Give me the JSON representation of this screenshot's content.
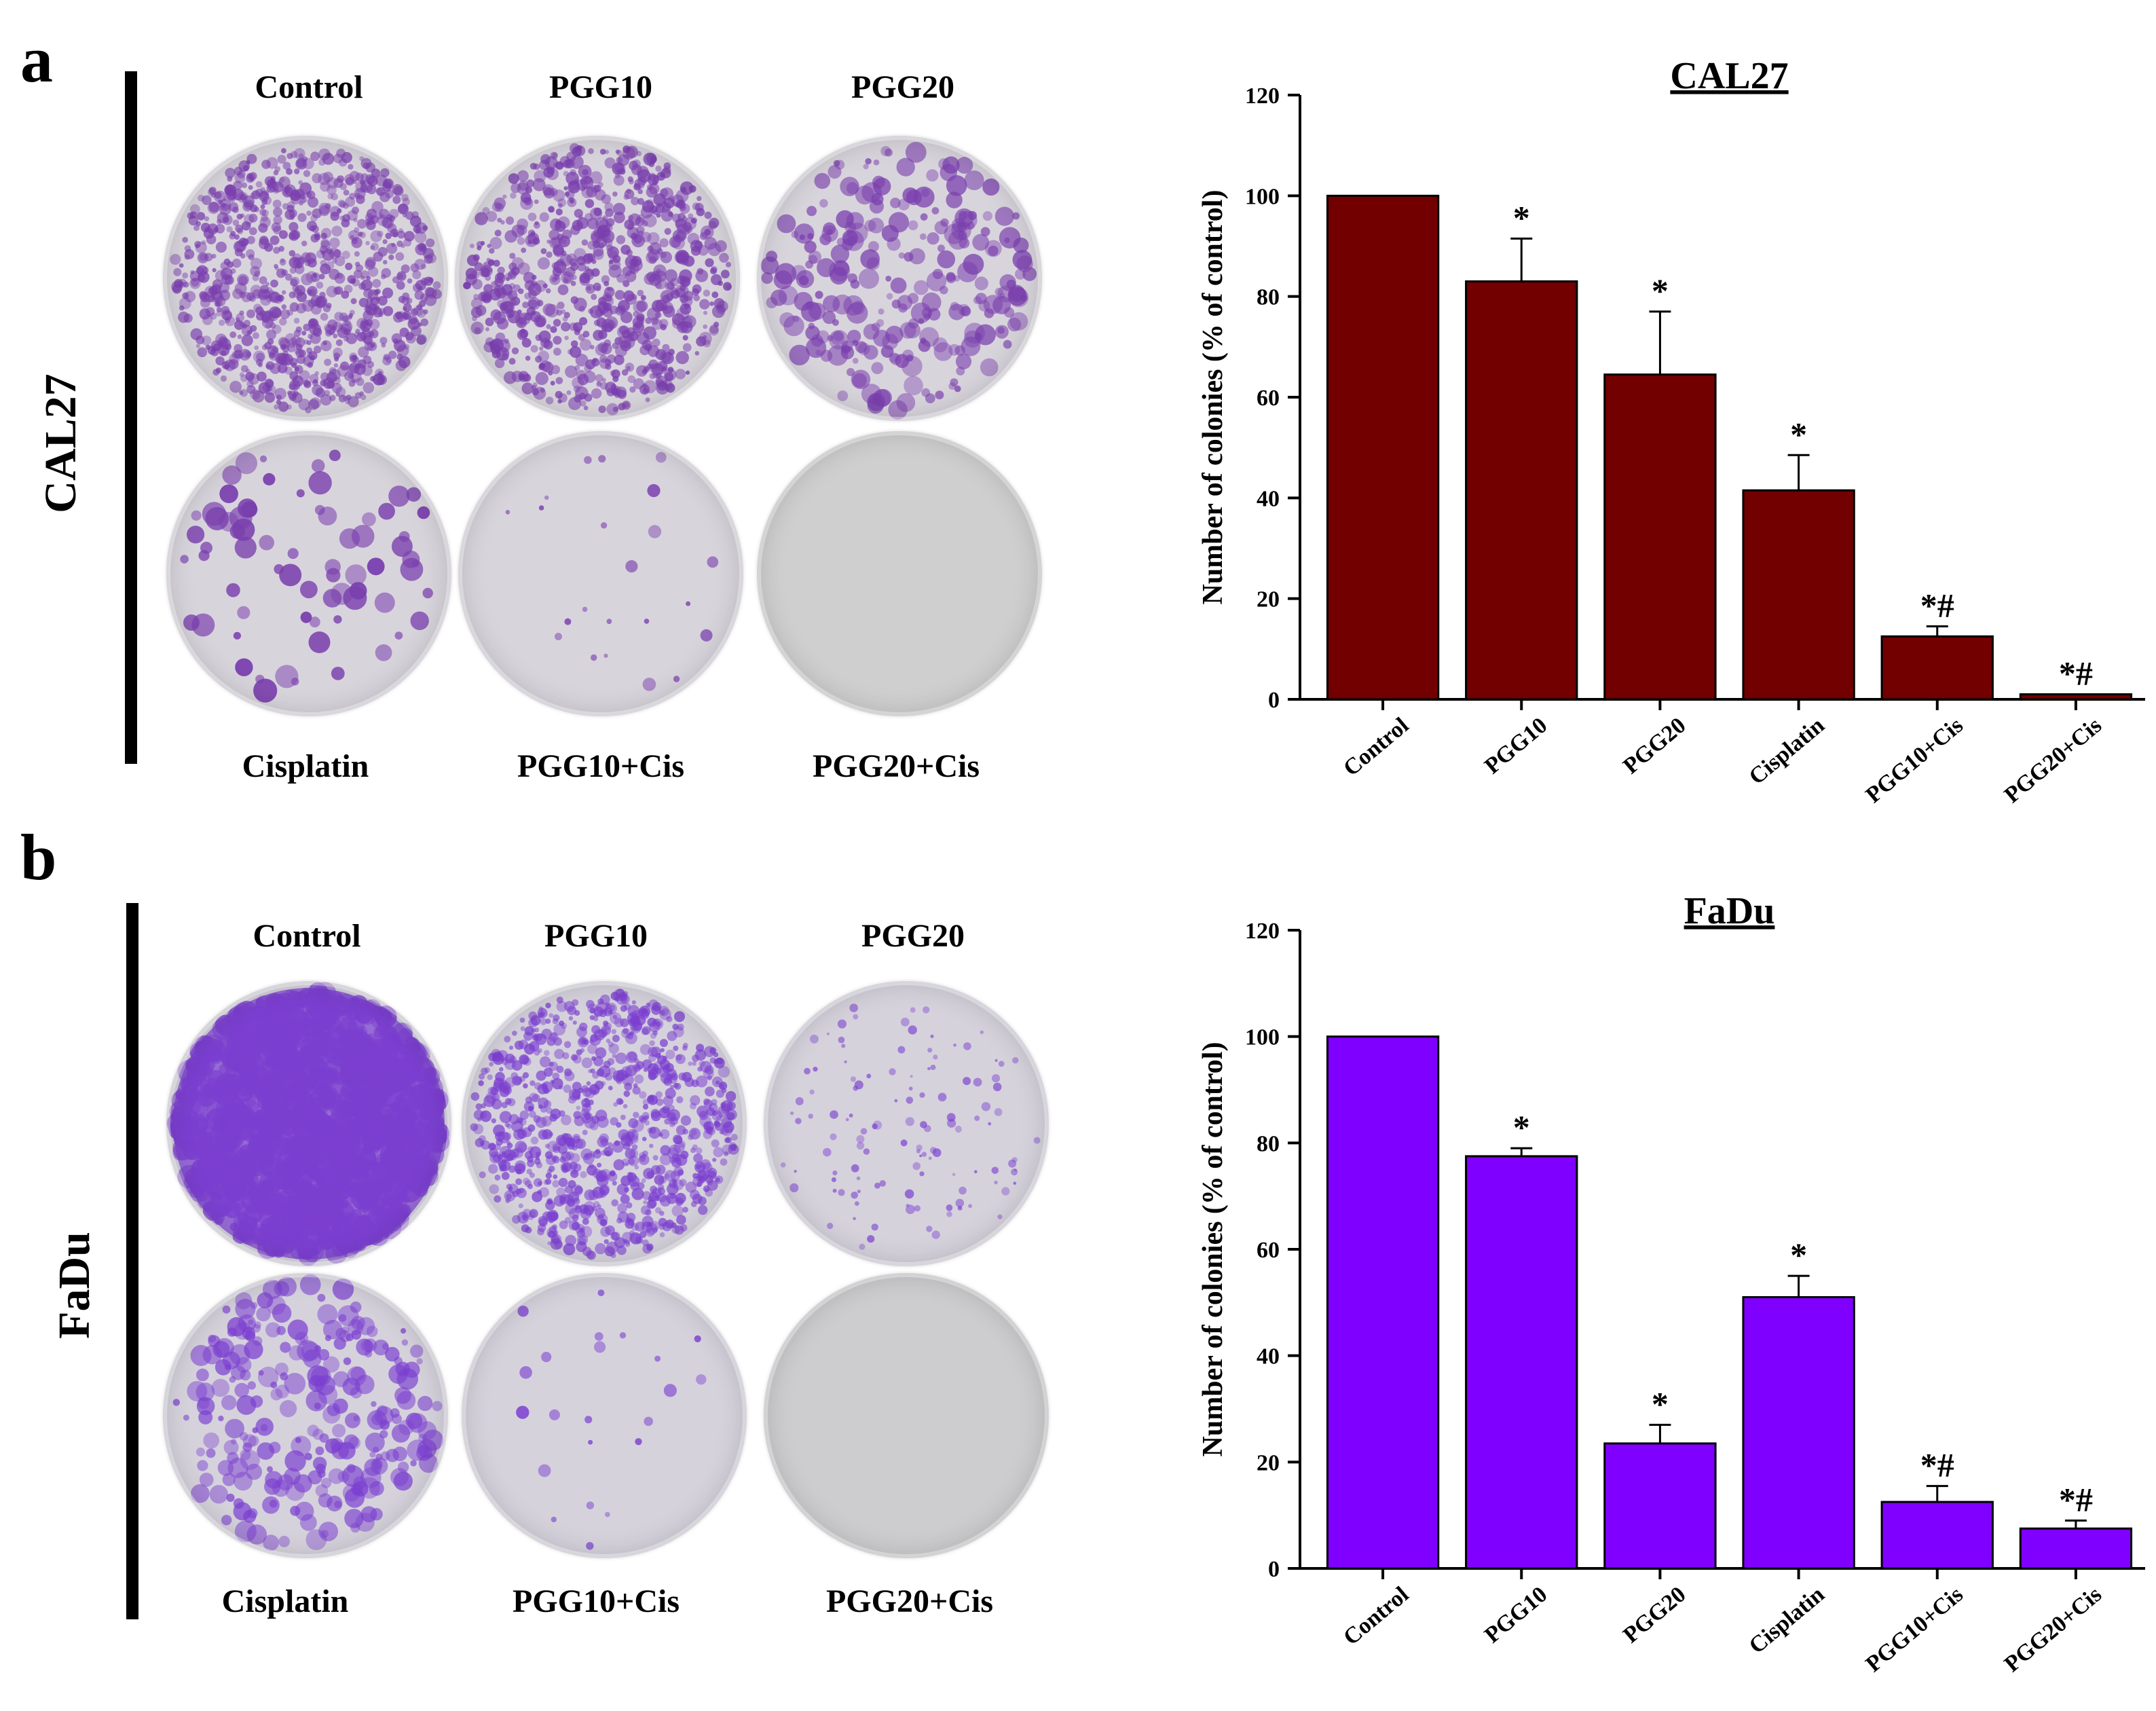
{
  "panels": [
    {
      "letter": "a",
      "cell_line": "CAL27",
      "dish_labels_top": [
        "Control",
        "PGG10",
        "PGG20"
      ],
      "dish_labels_bottom": [
        "Cisplatin",
        "PGG10+Cis",
        "PGG20+Cis"
      ],
      "dish_colors": {
        "stain": "#7a3fae",
        "background": "#d8d4dc",
        "empty": "#cfcfcf"
      }
    },
    {
      "letter": "b",
      "cell_line": "FaDu",
      "dish_labels_top": [
        "Control",
        "PGG10",
        "PGG20"
      ],
      "dish_labels_bottom": [
        "Cisplatin",
        "PGG10+Cis",
        "PGG20+Cis"
      ],
      "dish_colors": {
        "stain": "#7b3fd0",
        "background": "#d5d2dc",
        "empty": "#cdcdcf"
      }
    }
  ],
  "chart_data": [
    {
      "type": "bar",
      "title": "CAL27",
      "xlabel": "",
      "ylabel": "Number of colonies (% of control)",
      "categories": [
        "Control",
        "PGG10",
        "PGG20",
        "Cisplatin",
        "PGG10+Cis",
        "PGG20+Cis"
      ],
      "values": [
        100,
        83,
        64.5,
        41.5,
        12.5,
        1
      ],
      "errors": [
        0,
        8.5,
        12.5,
        7,
        2,
        0
      ],
      "annotations": [
        "",
        "*",
        "*",
        "*",
        "*#",
        "*#"
      ],
      "ylim": [
        0,
        120
      ],
      "yticks": [
        0,
        20,
        40,
        60,
        80,
        100,
        120
      ],
      "color": "#720000",
      "grid": false
    },
    {
      "type": "bar",
      "title": "FaDu",
      "xlabel": "",
      "ylabel": "Number of colonies (% of control)",
      "categories": [
        "Control",
        "PGG10",
        "PGG20",
        "Cisplatin",
        "PGG10+Cis",
        "PGG20+Cis"
      ],
      "values": [
        100,
        77.5,
        23.5,
        51,
        12.5,
        7.5
      ],
      "errors": [
        0,
        1.5,
        3.5,
        4,
        3,
        1.5
      ],
      "annotations": [
        "",
        "*",
        "*",
        "*",
        "*#",
        "*#"
      ],
      "ylim": [
        0,
        120
      ],
      "yticks": [
        0,
        20,
        40,
        60,
        80,
        100,
        120
      ],
      "color": "#8000ff",
      "grid": false
    }
  ]
}
